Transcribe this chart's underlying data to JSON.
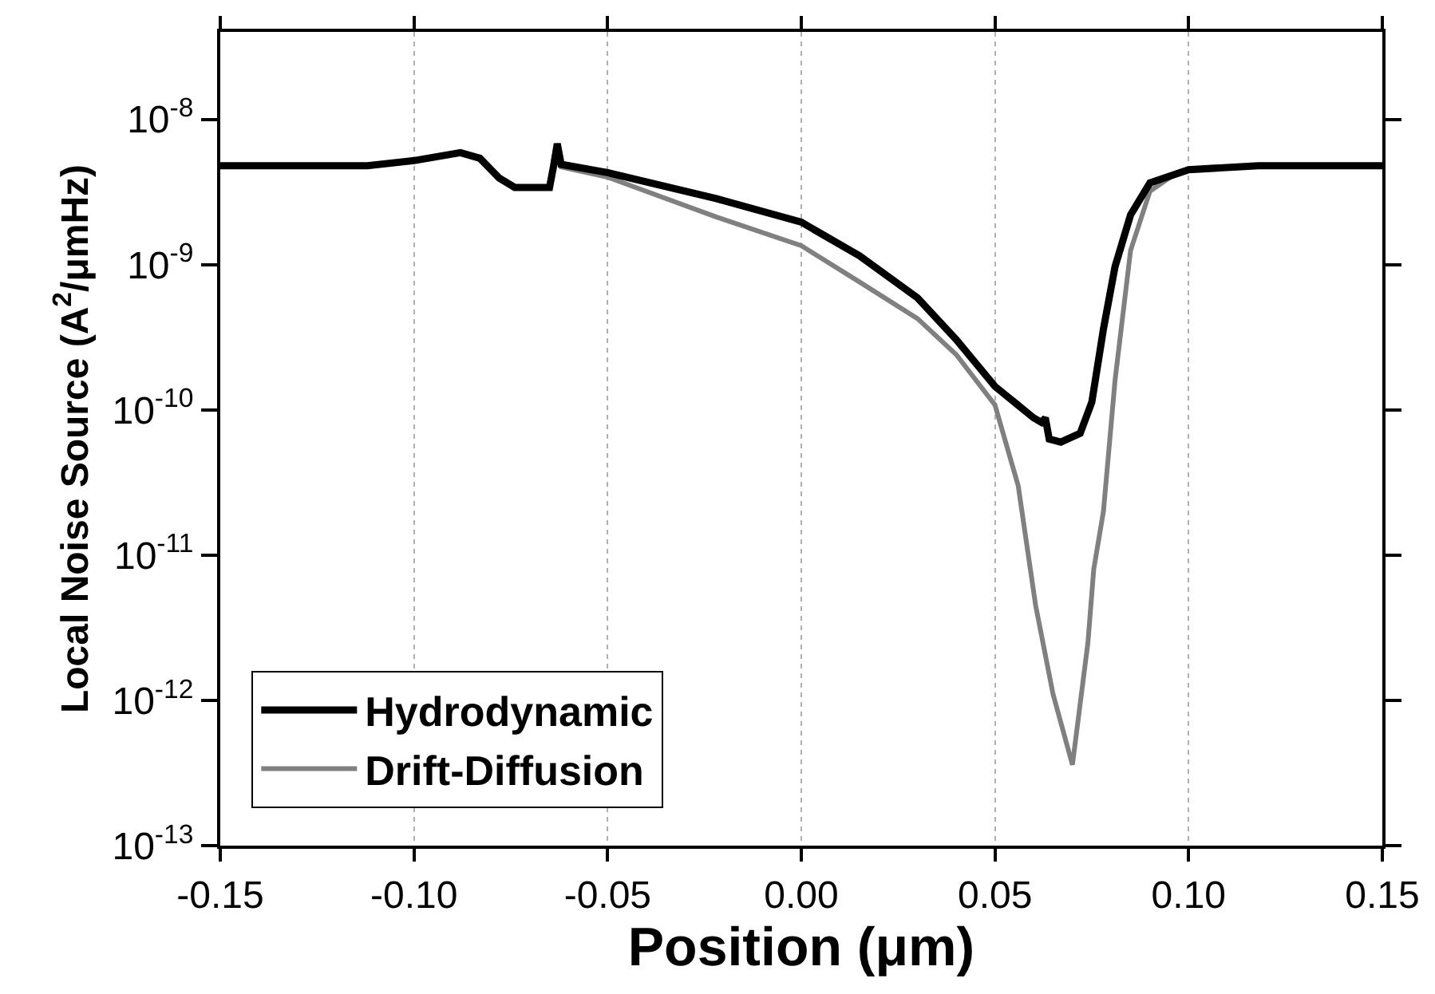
{
  "chart_data": {
    "type": "line",
    "xlabel": "Position (μm)",
    "ylabel": "Local Noise Source (A$^{2}$/μmHz)",
    "log": "y",
    "grid": "x",
    "legend": "bottom left",
    "line_style": "solid",
    "marker": "none",
    "xlim": [
      -0.15,
      0.15
    ],
    "xticks": [
      {
        "value": -0.15,
        "label": "-0.15"
      },
      {
        "value": -0.1,
        "label": "-0.10"
      },
      {
        "value": -0.05,
        "label": "-0.05"
      },
      {
        "value": 0,
        "label": "0.00"
      },
      {
        "value": 0.05,
        "label": "0.05"
      },
      {
        "value": 0.1,
        "label": "0.10"
      },
      {
        "value": 0.15,
        "label": "0.15"
      }
    ],
    "ylim": [
      1e-13,
      4e-08
    ],
    "yticks": [
      {
        "value": 1e-13,
        "label": "10$^{-13}$"
      },
      {
        "value": 1e-12,
        "label": "10$^{-12}$"
      },
      {
        "value": 1e-11,
        "label": "10$^{-11}$"
      },
      {
        "value": 1e-10,
        "label": "10$^{-10}$"
      },
      {
        "value": 1e-09,
        "label": "10$^{-9}$"
      },
      {
        "value": 1e-08,
        "label": "10$^{-8}$"
      }
    ],
    "series": [
      {
        "name": "Hydrodynamic",
        "color": "#000000",
        "x": [
          -0.15,
          -0.112,
          -0.1,
          -0.088,
          -0.083,
          -0.078,
          -0.074,
          -0.065,
          -0.064,
          -0.063,
          -0.062,
          -0.05,
          -0.022,
          0.0,
          0.015,
          0.03,
          0.04,
          0.05,
          0.06,
          0.062,
          0.063,
          0.064,
          0.067,
          0.072,
          0.075,
          0.078,
          0.081,
          0.085,
          0.09,
          0.1,
          0.118,
          0.15
        ],
        "values": [
          4.8e-09,
          4.8e-09,
          5.2e-09,
          5.9e-09,
          5.4e-09,
          3.95e-09,
          3.4e-09,
          3.4e-09,
          4.7e-09,
          6.8e-09,
          4.9e-09,
          4.3e-09,
          2.85e-09,
          1.96e-09,
          1.15e-09,
          5.9e-10,
          3.05e-10,
          1.45e-10,
          8.8e-11,
          8.2e-11,
          8.8e-11,
          6.3e-11,
          6e-11,
          6.9e-11,
          1.13e-10,
          3.6e-10,
          9.7e-10,
          2.2e-09,
          3.65e-09,
          4.5e-09,
          4.8e-09,
          4.8e-09
        ]
      },
      {
        "name": "Drift-Diffusion",
        "color": "#808080",
        "x": [
          -0.15,
          -0.112,
          -0.1,
          -0.088,
          -0.083,
          -0.078,
          -0.074,
          -0.065,
          -0.064,
          -0.063,
          -0.062,
          -0.05,
          -0.022,
          0.0,
          0.015,
          0.03,
          0.04,
          0.05,
          0.056,
          0.0605,
          0.065,
          0.07,
          0.074,
          0.0755,
          0.078,
          0.081,
          0.085,
          0.09,
          0.097,
          0.1,
          0.118,
          0.15
        ],
        "values": [
          4.8e-09,
          4.8e-09,
          5.2e-09,
          5.9e-09,
          5.4e-09,
          3.95e-09,
          3.4e-09,
          3.4e-09,
          4.7e-09,
          6.8e-09,
          4.7e-09,
          4e-09,
          2.13e-09,
          1.35e-09,
          7.6e-10,
          4.25e-10,
          2.4e-10,
          1.08e-10,
          3e-11,
          4.5e-12,
          1.1e-12,
          3.6e-13,
          2.5e-12,
          8e-12,
          2e-11,
          1.6e-10,
          1.25e-09,
          3.2e-09,
          4.3e-09,
          4.5e-09,
          4.8e-09,
          4.8e-09
        ]
      }
    ]
  }
}
